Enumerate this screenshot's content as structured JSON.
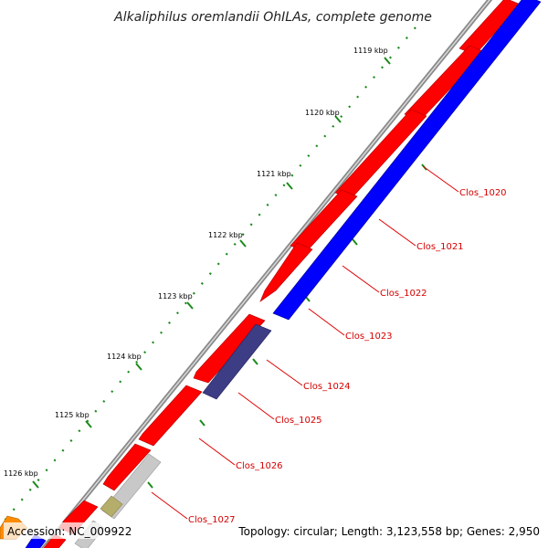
{
  "title": "Alkaliphilus oremlandii OhILAs, complete genome",
  "footer": {
    "accession": "Accession: NC_009922",
    "summary": "Topology: circular; Length: 3,123,558 bp; Genes: 2,950"
  },
  "ticks": [
    "1119 kbp",
    "1120 kbp",
    "1121 kbp",
    "1122 kbp",
    "1123 kbp",
    "1124 kbp",
    "1125 kbp",
    "1126 kbp"
  ],
  "genes": [
    "Clos_1020",
    "Clos_1021",
    "Clos_1022",
    "Clos_1023",
    "Clos_1024",
    "Clos_1025",
    "Clos_1026",
    "Clos_1027"
  ],
  "colors": {
    "forward_cds": "#ff0000",
    "reverse_cds": "#0000ff",
    "reverse_cds_dark": "#3d3d85",
    "backbone": "#777777",
    "label": "#d40000",
    "tick": "#1a8a1a",
    "grey_feature": "#c8c8c8",
    "olive_feature": "#b5ad6a",
    "orange_feature": "#ff8c00"
  }
}
